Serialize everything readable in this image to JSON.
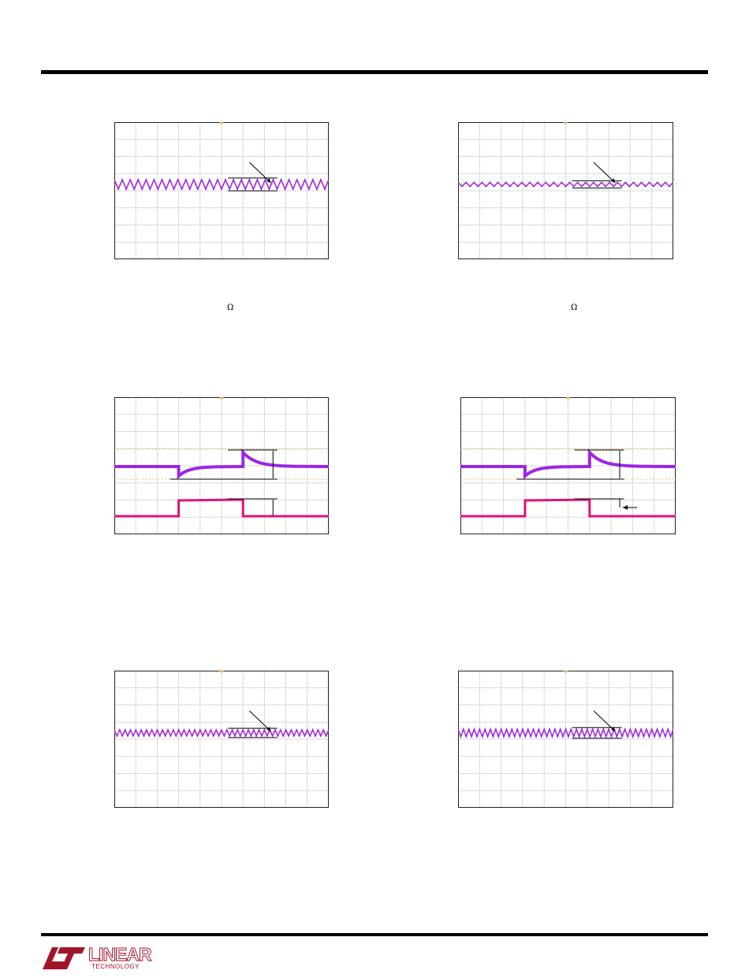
{
  "page": {
    "footer_brand": "LINEAR",
    "footer_brand_sub": "TECHNOLOGY"
  },
  "captions": {
    "omega_left": "Ω",
    "omega_right": "Ω"
  },
  "colors": {
    "trace_purple": "#9b27e6",
    "trace_magenta": "#e0127a",
    "grid": "#d9d9d9",
    "dashed_ref": "#f0a030",
    "rule": "#000000",
    "brand": "#a1152a"
  },
  "scopes": [
    {
      "id": "ripple-top-left",
      "type": "ripple",
      "amplitude_div": 0.28,
      "cycles": 27,
      "trigger_marker": true
    },
    {
      "id": "ripple-top-right",
      "type": "ripple",
      "amplitude_div": 0.12,
      "cycles": 27,
      "trigger_marker": true
    },
    {
      "id": "transient-left",
      "type": "transient",
      "pointer": "double-arrow"
    },
    {
      "id": "transient-right",
      "type": "transient",
      "pointer": "left-arrow"
    },
    {
      "id": "ripple-bottom-left",
      "type": "ripple",
      "amplitude_div": 0.18,
      "cycles": 40,
      "trigger_marker": true
    },
    {
      "id": "ripple-bottom-right",
      "type": "ripple",
      "amplitude_div": 0.22,
      "cycles": 40,
      "trigger_marker": true
    }
  ]
}
